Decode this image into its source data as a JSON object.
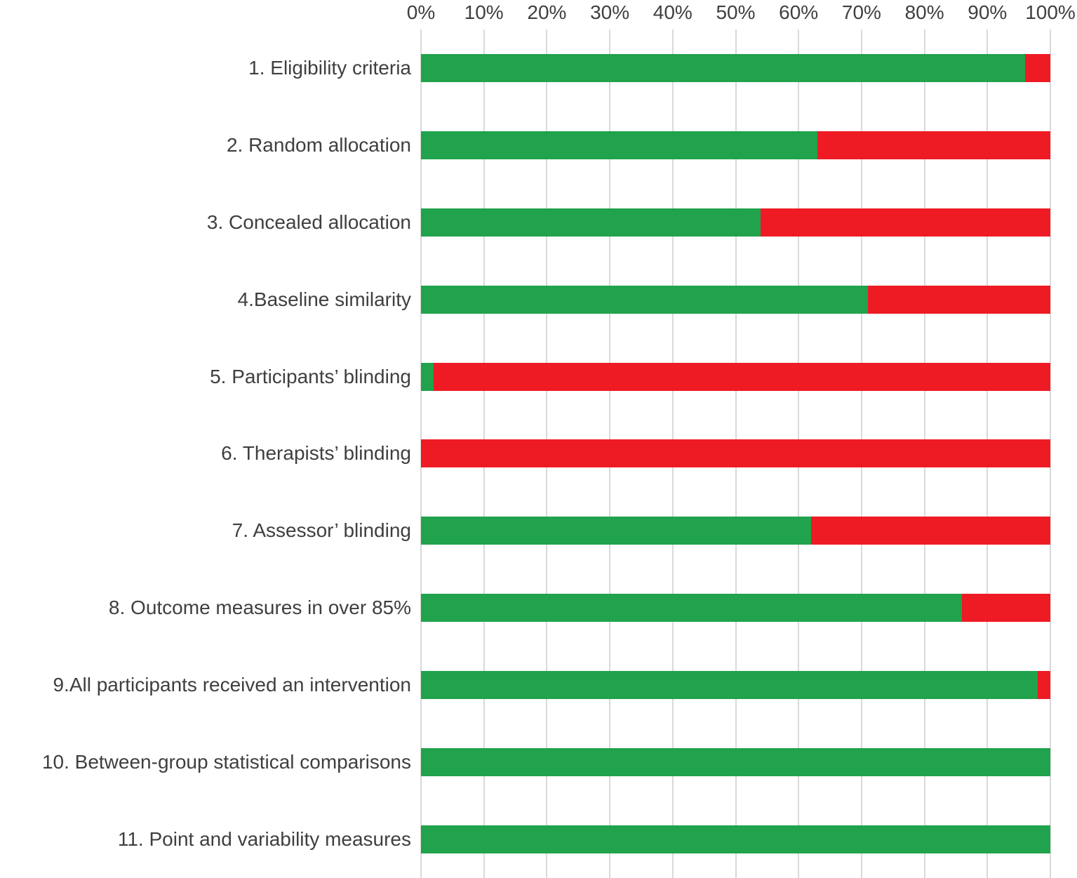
{
  "chart_data": {
    "type": "bar",
    "orientation": "horizontal",
    "stacked": true,
    "title": "",
    "categories": [
      "1. Eligibility criteria",
      "2. Random allocation",
      "3. Concealed allocation",
      "4.Baseline similarity",
      "5. Participants’ blinding",
      "6. Therapists’ blinding",
      "7. Assessor’ blinding",
      "8. Outcome measures in over 85%",
      "9.All participants received an intervention",
      "10. Between-group statistical comparisons",
      "11. Point and variability measures"
    ],
    "series": [
      {
        "name": "green",
        "color": "#21a24c",
        "values": [
          96,
          63,
          54,
          71,
          2,
          0,
          62,
          86,
          98,
          100,
          100
        ]
      },
      {
        "name": "red",
        "color": "#ee1b24",
        "values": [
          4,
          37,
          46,
          29,
          98,
          100,
          38,
          14,
          2,
          0,
          0
        ]
      }
    ],
    "x_axis": {
      "position": "top",
      "min": 0,
      "max": 100,
      "tick_labels": [
        "0%",
        "10%",
        "20%",
        "30%",
        "40%",
        "50%",
        "60%",
        "70%",
        "80%",
        "90%",
        "100%"
      ]
    },
    "grid": true,
    "gridline_color": "#d9d9d9",
    "legend": "none",
    "text_color": "#3f3f3f"
  }
}
